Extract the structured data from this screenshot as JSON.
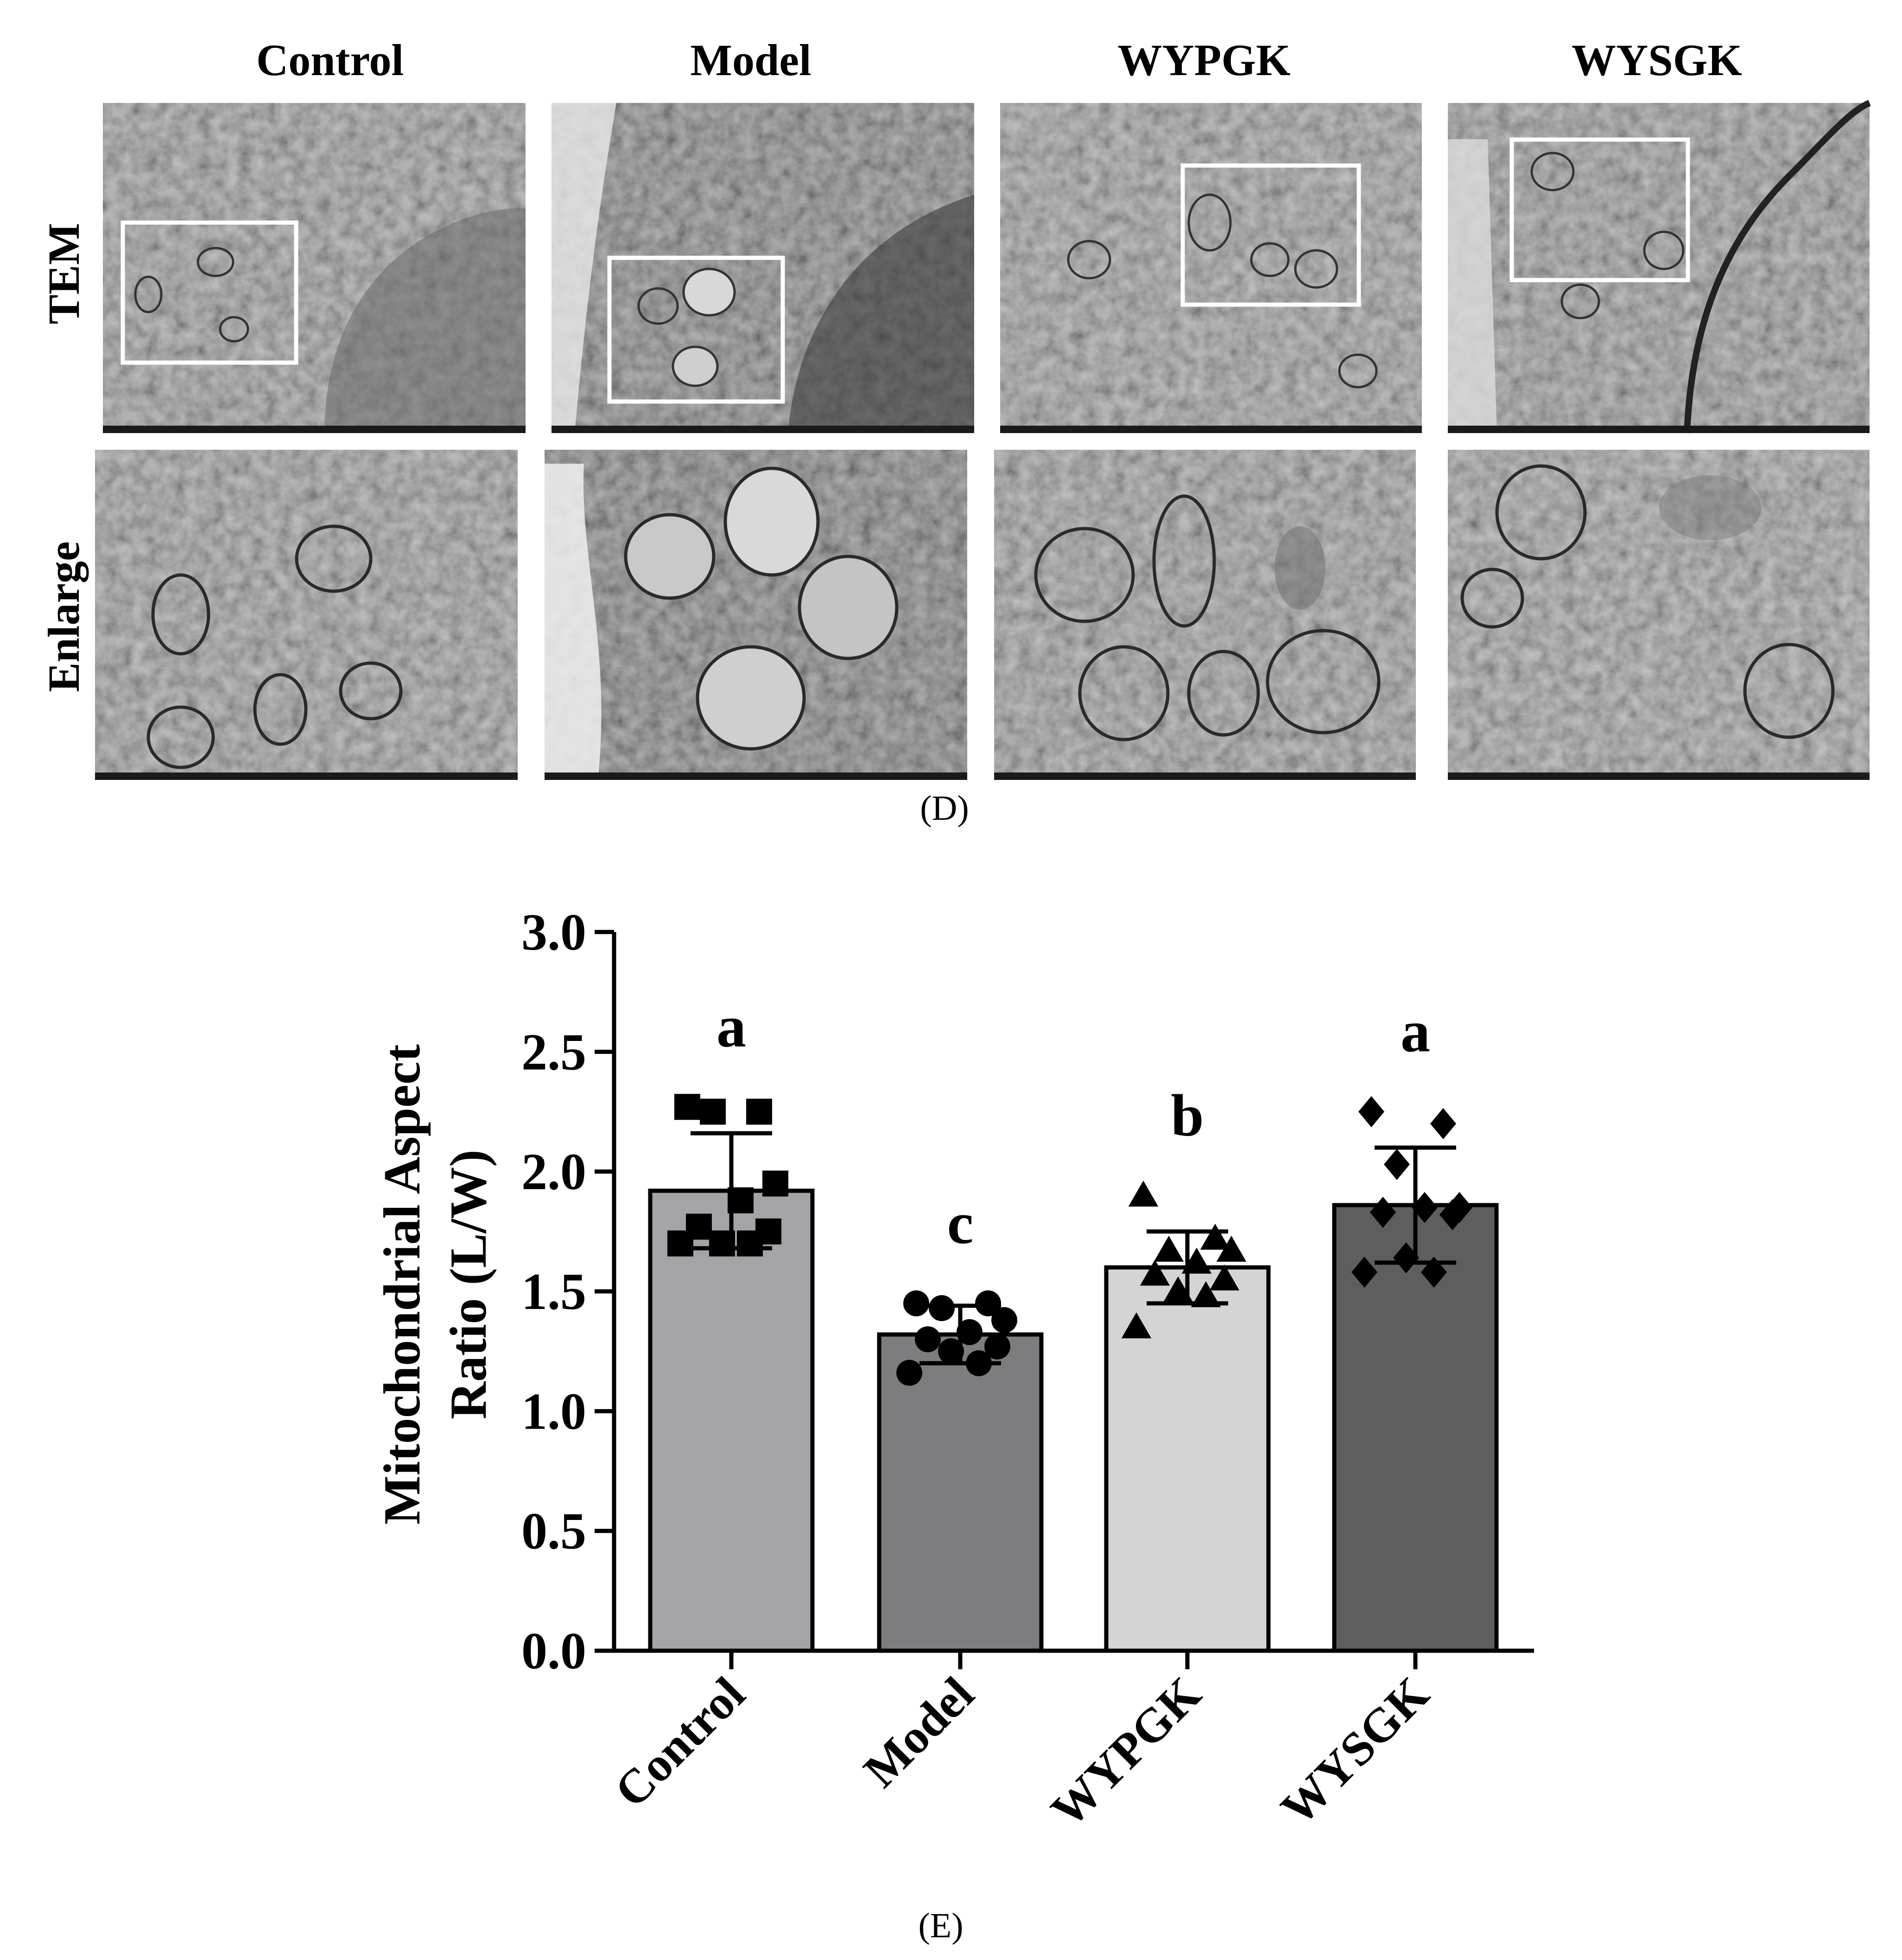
{
  "panel_d": {
    "label": "(D)",
    "groups": [
      "Control",
      "Model",
      "WYPGK",
      "WYSGK"
    ],
    "rows": [
      "TEM",
      "Enlarge"
    ]
  },
  "chart_data": {
    "type": "bar",
    "panel_label": "(E)",
    "categories": [
      "Control",
      "Model",
      "WYPGK",
      "WYSGK"
    ],
    "values": [
      1.92,
      1.32,
      1.6,
      1.86
    ],
    "error": [
      0.24,
      0.12,
      0.15,
      0.24
    ],
    "significance": [
      "a",
      "c",
      "b",
      "a"
    ],
    "points": [
      [
        2.27,
        2.25,
        2.25,
        1.95,
        1.88,
        1.77,
        1.75,
        1.7,
        1.7,
        1.7
      ],
      [
        1.45,
        1.45,
        1.43,
        1.38,
        1.33,
        1.3,
        1.27,
        1.25,
        1.2,
        1.16
      ],
      [
        1.9,
        1.72,
        1.67,
        1.67,
        1.62,
        1.57,
        1.55,
        1.5,
        1.48,
        1.35
      ],
      [
        2.25,
        2.2,
        2.03,
        1.85,
        1.85,
        1.83,
        1.82,
        1.64,
        1.58,
        1.58
      ]
    ],
    "marker_shapes": [
      "square",
      "circle",
      "triangle",
      "diamond"
    ],
    "bar_colors": [
      "#a4a4a8",
      "#7d7d7f",
      "#d4d4d4",
      "#5e5e5e"
    ],
    "title": "",
    "xlabel": "",
    "ylabel_lines": [
      "Mitochondrial Aspect",
      "Ratio (L/W)"
    ],
    "ylim": [
      0,
      3.0
    ],
    "yticks": [
      "0.0",
      "0.5",
      "1.0",
      "1.5",
      "2.0",
      "2.5",
      "3.0"
    ],
    "grid": false
  }
}
